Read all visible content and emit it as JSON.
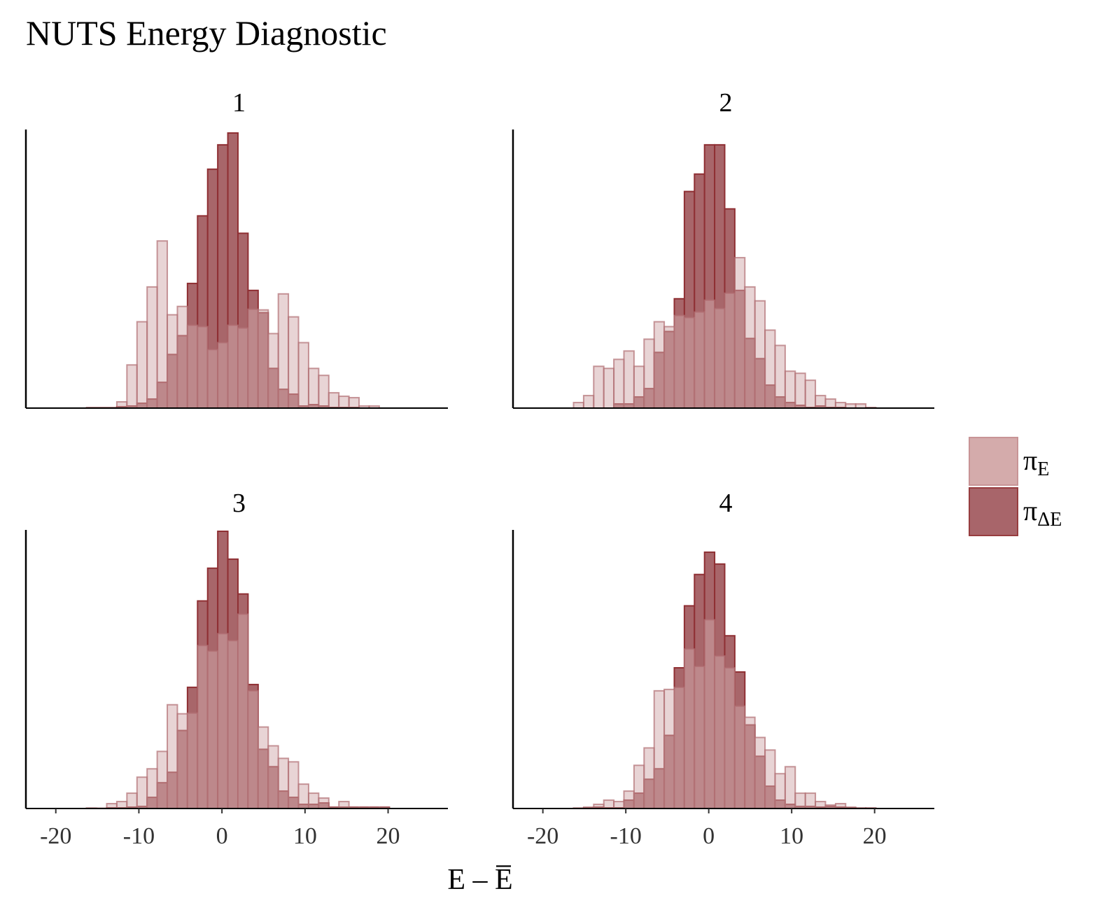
{
  "chart_data": {
    "type": "bar",
    "subtype": "overlaid histogram facets",
    "title": "NUTS Energy Diagnostic",
    "xlabel": "E – E̅",
    "ylabel": "",
    "xlim": [
      -23.6,
      27.2
    ],
    "ylim": [
      0,
      400
    ],
    "y_units": "relative height (no y-axis ticks shown)",
    "x_ticks": [
      -20,
      -10,
      0,
      10,
      20
    ],
    "x_tick_labels": [
      "-20",
      "-10",
      "0",
      "10",
      "20"
    ],
    "bin_start": -16.3,
    "bin_width": 1.215,
    "grid": false,
    "legend": {
      "placement": "right",
      "entries": [
        {
          "key": "E",
          "label_main": "π",
          "label_sub": "E",
          "fill": "#d4abab",
          "stroke": "#c89496"
        },
        {
          "key": "dE",
          "label_main": "π",
          "label_sub": "ΔE",
          "fill": "#a8656a",
          "stroke": "#973d3f"
        }
      ]
    },
    "colors": {
      "E_fill": "rgba(209,169,171,0.5)",
      "E_stroke": "rgba(176,110,114,0.7)",
      "dE_fill": "#a8666a",
      "dE_stroke": "#8f2f33"
    },
    "facets": [
      {
        "label": "1",
        "E": [
          0,
          0,
          0,
          9,
          62,
          124,
          174,
          240,
          134,
          146,
          119,
          117,
          84,
          94,
          119,
          115,
          142,
          141,
          107,
          164,
          131,
          94,
          57,
          47,
          22,
          17,
          15,
          3,
          3,
          0
        ],
        "dE": [
          0.5,
          0.5,
          0.5,
          2,
          3,
          7,
          13,
          37,
          77,
          104,
          179,
          276,
          343,
          378,
          395,
          251,
          169,
          137,
          57,
          27,
          20,
          3,
          5,
          3,
          1,
          1,
          1,
          0,
          0,
          0
        ]
      },
      {
        "label": "2",
        "E": [
          8,
          18,
          60,
          57,
          70,
          82,
          60,
          99,
          124,
          117,
          133,
          130,
          138,
          155,
          143,
          165,
          216,
          174,
          154,
          112,
          90,
          53,
          50,
          40,
          18,
          13,
          8,
          6,
          6,
          1
        ],
        "dE": [
          0,
          0,
          0,
          0,
          6,
          6,
          16,
          28,
          80,
          110,
          157,
          311,
          336,
          378,
          378,
          286,
          169,
          100,
          71,
          33,
          16,
          8,
          4,
          1,
          3,
          1,
          1,
          0,
          0,
          0
        ]
      },
      {
        "label": "3",
        "E": [
          0.5,
          0.5,
          7,
          10,
          22,
          45,
          57,
          82,
          149,
          136,
          137,
          234,
          226,
          251,
          241,
          279,
          169,
          117,
          90,
          72,
          67,
          35,
          22,
          15,
          2,
          10,
          2,
          2,
          2,
          2
        ],
        "dE": [
          0.5,
          0,
          1,
          1,
          2,
          3,
          16,
          37,
          52,
          112,
          174,
          298,
          345,
          398,
          358,
          308,
          178,
          85,
          60,
          25,
          16,
          6,
          6,
          8,
          2,
          2,
          2,
          2,
          2,
          2
        ]
      },
      {
        "label": "4",
        "E": [
          0.5,
          2,
          6,
          12,
          10,
          25,
          62,
          87,
          169,
          171,
          174,
          229,
          204,
          271,
          219,
          202,
          147,
          131,
          102,
          84,
          50,
          60,
          22,
          22,
          10,
          5,
          7,
          2,
          1,
          1
        ],
        "dE": [
          0.5,
          1,
          2,
          1,
          1,
          12,
          22,
          42,
          57,
          105,
          202,
          291,
          336,
          368,
          351,
          248,
          196,
          120,
          75,
          32,
          12,
          6,
          3,
          3,
          2,
          3,
          2,
          1,
          0,
          0
        ]
      }
    ]
  }
}
